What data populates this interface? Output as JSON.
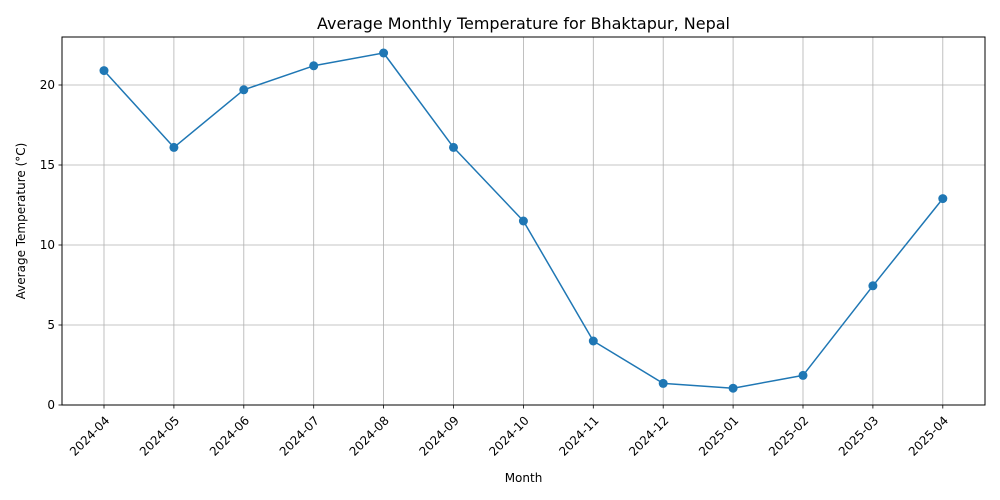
{
  "chart_data": {
    "type": "line",
    "title": "Average Monthly Temperature for Bhaktapur, Nepal",
    "xlabel": "Month",
    "ylabel": "Average Temperature (°C)",
    "categories": [
      "2024-04",
      "2024-05",
      "2024-06",
      "2024-07",
      "2024-08",
      "2024-09",
      "2024-10",
      "2024-11",
      "2024-12",
      "2025-01",
      "2025-02",
      "2025-03",
      "2025-04"
    ],
    "series": [
      {
        "values": [
          20.9,
          16.1,
          19.7,
          21.2,
          22.0,
          16.1,
          11.5,
          4.0,
          1.35,
          1.05,
          1.85,
          7.45,
          12.9
        ]
      }
    ],
    "ylim": [
      0,
      23
    ],
    "yticks": [
      0,
      5,
      10,
      15,
      20
    ],
    "grid": true,
    "marker": "circle",
    "line_color": "#1f77b4"
  }
}
